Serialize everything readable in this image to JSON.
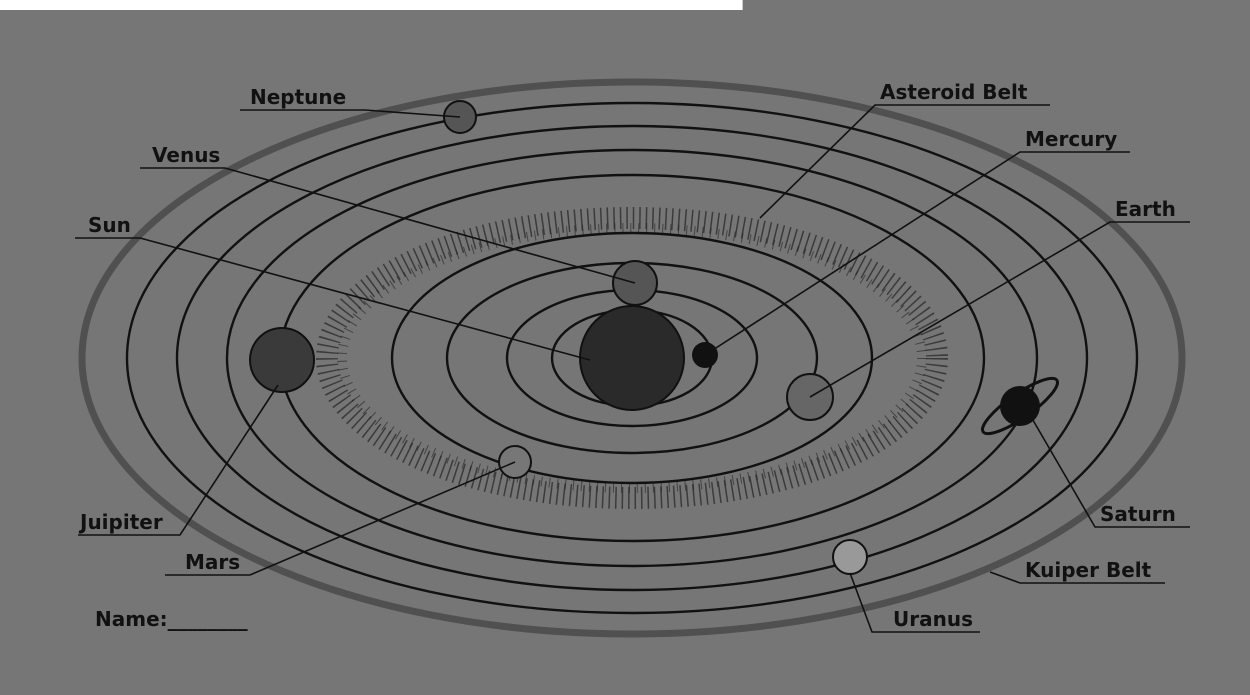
{
  "labels": [
    "Neptune",
    "Venus",
    "Sun",
    "Asteroid Belt",
    "Mercury",
    "Earth",
    "Juipiter",
    "Mars",
    "Saturn",
    "Kuiper Belt",
    "Uranus"
  ],
  "name_field": "Name:________"
}
